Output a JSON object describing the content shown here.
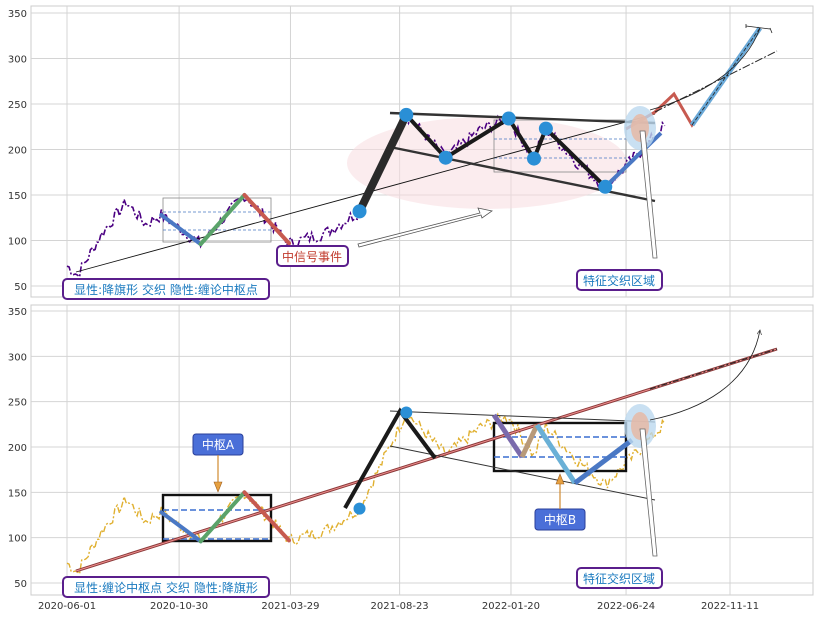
{
  "chart_data": [
    {
      "type": "line",
      "title": "",
      "xlabel": "",
      "ylabel": "",
      "ylim": [
        38,
        360
      ],
      "yticks": [
        "50",
        "100",
        "150",
        "200",
        "250",
        "300",
        "350"
      ],
      "grid": true,
      "annotation_left": "显性:降旗形 交织 隐性:缠论中枢点",
      "annotation_mid": "中信号事件",
      "annotation_right": "特征交织区域",
      "price_color": "#4b0082",
      "zigzag": [
        {
          "x": "2020-10-06",
          "y": 128,
          "color": "#4a78c4"
        },
        {
          "x": "2020-11-28",
          "y": 96,
          "color": "#5aa36a"
        },
        {
          "x": "2021-01-26",
          "y": 150,
          "color": "#c75a50"
        },
        {
          "x": "2021-03-27",
          "y": 97,
          "color": ""
        }
      ],
      "pivots": [
        {
          "x": "2021-06-30",
          "y": 132
        },
        {
          "x": "2021-09-01",
          "y": 238
        },
        {
          "x": "2021-10-24",
          "y": 191
        },
        {
          "x": "2022-01-17",
          "y": 234
        },
        {
          "x": "2022-02-20",
          "y": 190
        },
        {
          "x": "2022-03-08",
          "y": 223
        },
        {
          "x": "2022-05-27",
          "y": 159
        }
      ]
    },
    {
      "type": "line",
      "title": "",
      "xlabel": "",
      "ylabel": "",
      "ylim": [
        38,
        358
      ],
      "yticks": [
        "50",
        "100",
        "150",
        "200",
        "250",
        "300",
        "350"
      ],
      "xticks": [
        "2020-06-01",
        "2020-10-30",
        "2021-03-29",
        "2021-08-23",
        "2022-01-20",
        "2022-06-24",
        "2022-11-11"
      ],
      "grid": true,
      "annotation_left": "显性:缠论中枢点 交织 隐性:降旗形",
      "annotation_right": "特征交织区域",
      "label_a": "中枢A",
      "label_b": "中枢B",
      "price_color": "#e0b030",
      "zigzag": [
        {
          "x": "2020-10-06",
          "y": 128,
          "color": "#4a78c4"
        },
        {
          "x": "2020-11-28",
          "y": 96,
          "color": "#5aa36a"
        },
        {
          "x": "2021-01-26",
          "y": 150,
          "color": "#c75a50"
        },
        {
          "x": "2021-03-27",
          "y": 97,
          "color": ""
        }
      ],
      "pivots": [
        {
          "x": "2021-06-30",
          "y": 132
        },
        {
          "x": "2021-09-01",
          "y": 238
        }
      ]
    }
  ]
}
